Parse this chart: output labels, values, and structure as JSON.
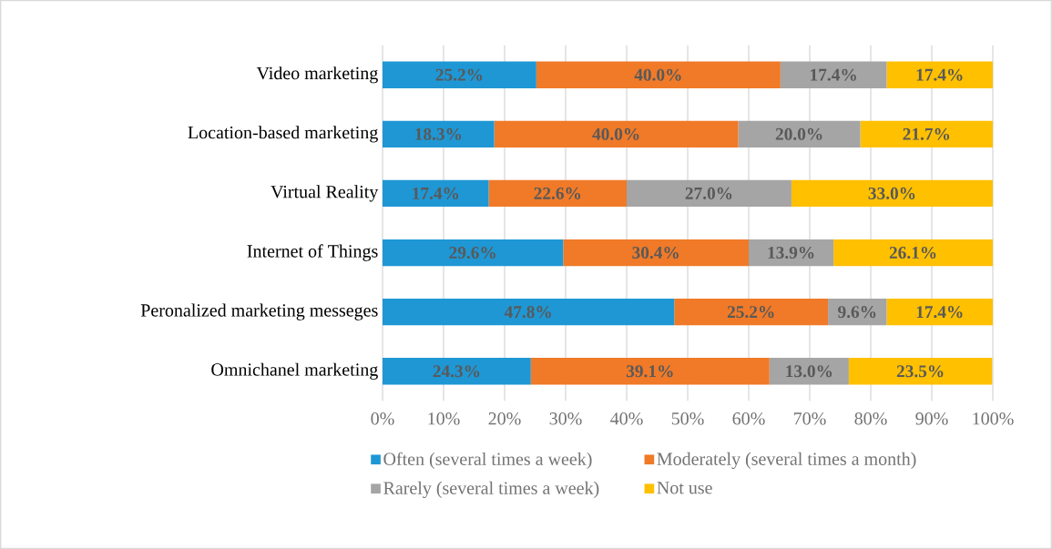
{
  "chart_data": {
    "type": "bar",
    "orientation": "horizontal",
    "stacked": true,
    "categories": [
      "Video marketing",
      "Location-based marketing",
      "Virtual Reality",
      "Internet of Things",
      "Peronalized marketing messeges",
      "Omnichanel marketing"
    ],
    "series": [
      {
        "name": "Often (several times a week)",
        "color": "#1f97d4",
        "values": [
          25.2,
          18.3,
          17.4,
          29.6,
          47.8,
          24.3
        ],
        "value_labels": [
          "25.2%",
          "18.3%",
          "17.4%",
          "29.6%",
          "47.8%",
          "24.3%"
        ]
      },
      {
        "name": "Moderately  (several times a month)",
        "color": "#f07a28",
        "values": [
          40.0,
          40.0,
          22.6,
          30.4,
          25.2,
          39.1
        ],
        "value_labels": [
          "40.0%",
          "40.0%",
          "22.6%",
          "30.4%",
          "25.2%",
          "39.1%"
        ]
      },
      {
        "name": "Rarely (several times a week)",
        "color": "#a5a5a5",
        "values": [
          17.4,
          20.0,
          27.0,
          13.9,
          9.6,
          13.0
        ],
        "value_labels": [
          "17.4%",
          "20.0%",
          "27.0%",
          "13.9%",
          "9.6%",
          "13.0%"
        ]
      },
      {
        "name": "Not use",
        "color": "#ffc000",
        "values": [
          17.4,
          21.7,
          33.0,
          26.1,
          17.4,
          23.5
        ],
        "value_labels": [
          "17.4%",
          "21.7%",
          "33.0%",
          "26.1%",
          "17.4%",
          "23.5%"
        ]
      }
    ],
    "xlim": [
      0,
      100
    ],
    "xticks": [
      {
        "value": 0,
        "label": "0%"
      },
      {
        "value": 10,
        "label": "10%"
      },
      {
        "value": 20,
        "label": "20%"
      },
      {
        "value": 30,
        "label": "30%"
      },
      {
        "value": 40,
        "label": "40%"
      },
      {
        "value": 50,
        "label": "50%"
      },
      {
        "value": 60,
        "label": "60%"
      },
      {
        "value": 70,
        "label": "70%"
      },
      {
        "value": 80,
        "label": "80%"
      },
      {
        "value": 90,
        "label": "90%"
      },
      {
        "value": 100,
        "label": "100%"
      }
    ],
    "grid": "x",
    "legend": "bottom"
  }
}
